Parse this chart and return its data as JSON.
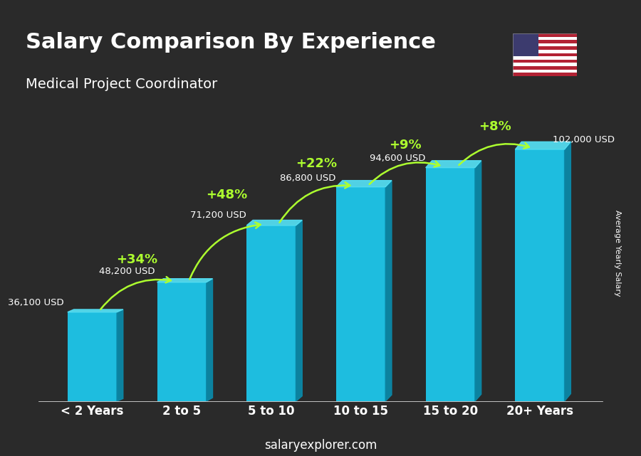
{
  "title": "Salary Comparison By Experience",
  "subtitle": "Medical Project Coordinator",
  "categories": [
    "< 2 Years",
    "2 to 5",
    "5 to 10",
    "10 to 15",
    "15 to 20",
    "20+ Years"
  ],
  "values": [
    36100,
    48200,
    71200,
    86800,
    94600,
    102000
  ],
  "labels": [
    "36,100 USD",
    "48,200 USD",
    "71,200 USD",
    "86,800 USD",
    "94,600 USD",
    "102,000 USD"
  ],
  "pct_labels": [
    "+34%",
    "+48%",
    "+22%",
    "+9%",
    "+8%"
  ],
  "bar_color_face": "#00BFFF",
  "bar_color_dark": "#007BA7",
  "background_color": "#3a3a3a",
  "text_color_white": "#FFFFFF",
  "text_color_green": "#ADFF2F",
  "ylabel": "Average Yearly Salary",
  "footer": "salaryexplorer.com",
  "ylim": [
    0,
    120000
  ]
}
